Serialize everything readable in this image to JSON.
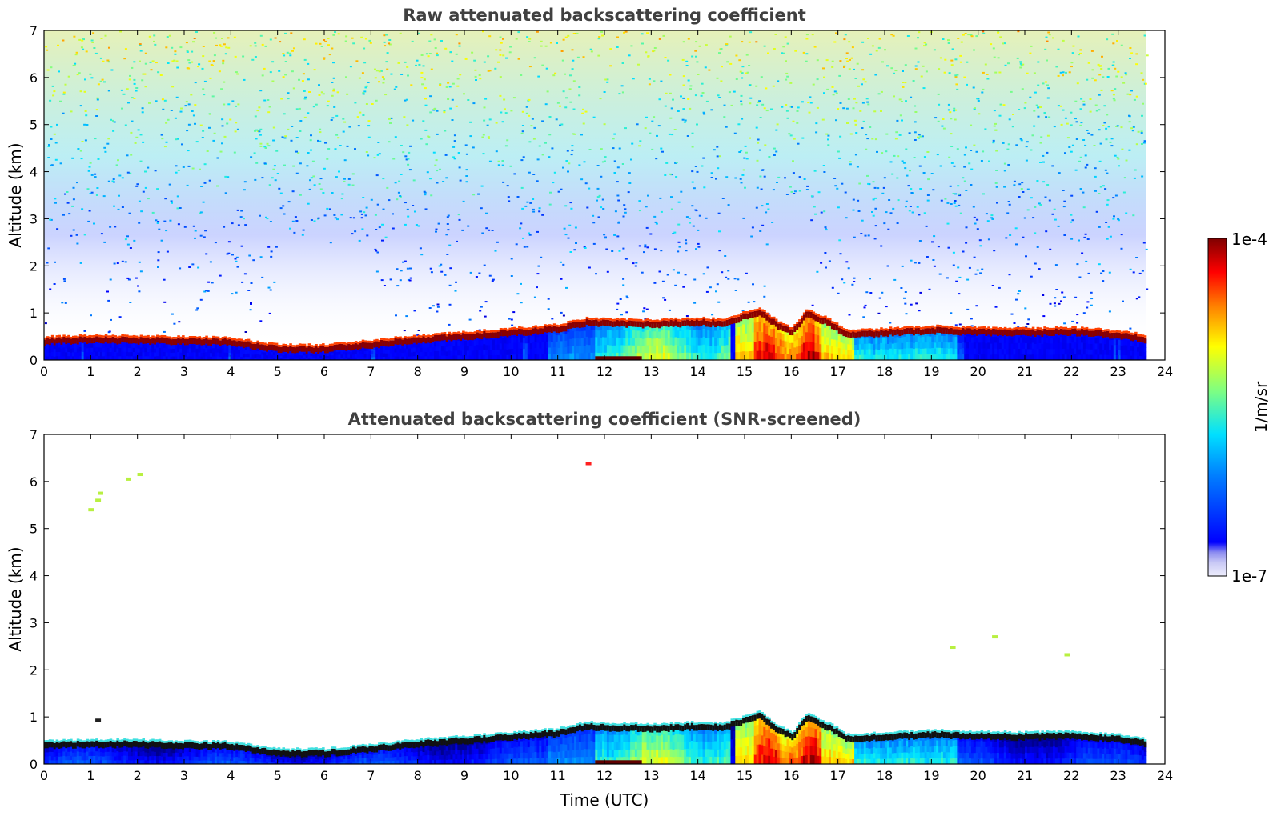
{
  "colors": {
    "background": "#ffffff",
    "title_text": "#404040",
    "colormap_jet": [
      "#00008f",
      "#0000ff",
      "#0080ff",
      "#00ffff",
      "#80ff80",
      "#ffff00",
      "#ff8000",
      "#ff0000",
      "#800000"
    ],
    "low_end_lavender": [
      "#e8e8fa",
      "#c8c8f5",
      "#a0a0f0",
      "#7878f0"
    ]
  },
  "chart_data": [
    {
      "type": "heatmap",
      "title": "Raw attenuated backscattering coefficient",
      "xlabel": "",
      "ylabel": "Altitude (km)",
      "xlim": [
        0,
        24
      ],
      "ylim": [
        0,
        7
      ],
      "x_ticks": [
        "0",
        "1",
        "2",
        "3",
        "4",
        "5",
        "6",
        "7",
        "8",
        "9",
        "10",
        "11",
        "12",
        "13",
        "14",
        "15",
        "16",
        "17",
        "18",
        "19",
        "20",
        "21",
        "22",
        "23",
        "24"
      ],
      "y_ticks": [
        "0",
        "1",
        "2",
        "3",
        "4",
        "5",
        "6",
        "7"
      ],
      "data_end_time": 23.6,
      "layer_top_km": {
        "time": [
          0,
          1,
          2,
          3,
          4,
          4.5,
          5,
          6,
          7,
          8,
          9,
          10,
          11,
          11.6,
          12,
          13,
          14,
          14.5,
          15,
          15.3,
          15.7,
          16,
          16.3,
          16.8,
          17.2,
          18,
          19,
          20,
          21,
          22,
          23,
          23.6
        ],
        "km": [
          0.42,
          0.45,
          0.44,
          0.42,
          0.4,
          0.32,
          0.25,
          0.25,
          0.35,
          0.45,
          0.52,
          0.6,
          0.68,
          0.82,
          0.8,
          0.78,
          0.82,
          0.8,
          0.95,
          1.05,
          0.75,
          0.6,
          1.0,
          0.8,
          0.55,
          0.6,
          0.65,
          0.62,
          0.6,
          0.62,
          0.55,
          0.45
        ]
      },
      "noise_ceiling_km": 7
    },
    {
      "type": "heatmap",
      "title": "Attenuated backscattering coefficient (SNR-screened)",
      "xlabel": "Time (UTC)",
      "ylabel": "Altitude (km)",
      "xlim": [
        0,
        24
      ],
      "ylim": [
        0,
        7
      ],
      "x_ticks": [
        "0",
        "1",
        "2",
        "3",
        "4",
        "5",
        "6",
        "7",
        "8",
        "9",
        "10",
        "11",
        "12",
        "13",
        "14",
        "15",
        "16",
        "17",
        "18",
        "19",
        "20",
        "21",
        "22",
        "23",
        "24"
      ],
      "y_ticks": [
        "0",
        "1",
        "2",
        "3",
        "4",
        "5",
        "6",
        "7"
      ],
      "data_end_time": 23.6,
      "isolated_echoes": [
        {
          "time": 1.15,
          "km": 5.6,
          "level": "moderate"
        },
        {
          "time": 1.2,
          "km": 5.75,
          "level": "moderate"
        },
        {
          "time": 1.0,
          "km": 5.4,
          "level": "moderate"
        },
        {
          "time": 1.8,
          "km": 6.05,
          "level": "moderate"
        },
        {
          "time": 2.05,
          "km": 6.15,
          "level": "moderate"
        },
        {
          "time": 11.65,
          "km": 6.38,
          "level": "high"
        },
        {
          "time": 19.45,
          "km": 2.48,
          "level": "moderate"
        },
        {
          "time": 20.35,
          "km": 2.7,
          "level": "moderate"
        },
        {
          "time": 21.9,
          "km": 2.32,
          "level": "moderate"
        },
        {
          "time": 1.15,
          "km": 0.93,
          "level": "low"
        }
      ]
    }
  ],
  "colorbar": {
    "label": "1/m/sr",
    "max_label": "1e-4",
    "min_label": "1e-7",
    "scale": "log",
    "range": [
      1e-07,
      0.0001
    ]
  }
}
